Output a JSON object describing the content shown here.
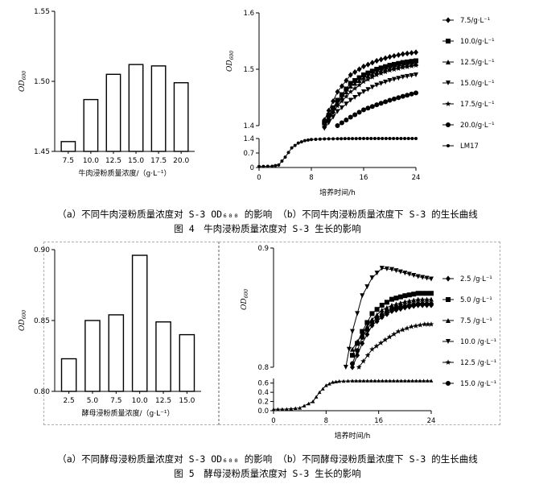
{
  "figure4": {
    "a": {
      "chart_data": {
        "type": "bar",
        "categories": [
          "7.5",
          "10.0",
          "12.5",
          "15.0",
          "17.5",
          "20.0"
        ],
        "values": [
          1.457,
          1.487,
          1.505,
          1.512,
          1.511,
          1.499
        ],
        "ylim": [
          1.45,
          1.55
        ],
        "yticks": [
          "1.45",
          "1.50",
          "1.55"
        ],
        "ylabel": "OD600",
        "xlabel": "牛肉浸粉质量浓度/（g·L⁻¹）"
      }
    },
    "b": {
      "chart_data": {
        "type": "line",
        "xlabel": "培养时间/h",
        "ylabel": "OD600",
        "xticks": [
          "0",
          "8",
          "16",
          "24"
        ],
        "yticks_upper": [
          "1.4",
          "1.5",
          "1.6"
        ],
        "yticks_lower": [
          "0",
          "0.7",
          "1.4"
        ],
        "xlim": [
          0,
          24
        ],
        "ylim_upper": [
          1.4,
          1.6
        ],
        "ylim_lower": [
          0,
          1.4
        ],
        "legend_position": "right",
        "series": [
          {
            "name": "7.5/g·L⁻¹",
            "marker": "diamond",
            "points": [
              [
                10,
                1.41
              ],
              [
                12,
                1.46
              ],
              [
                14,
                1.49
              ],
              [
                16,
                1.505
              ],
              [
                18,
                1.515
              ],
              [
                20,
                1.522
              ],
              [
                22,
                1.527
              ],
              [
                24,
                1.53
              ]
            ]
          },
          {
            "name": "10.0/g·L⁻¹",
            "marker": "square",
            "points": [
              [
                10,
                1.405
              ],
              [
                12,
                1.445
              ],
              [
                14,
                1.475
              ],
              [
                16,
                1.49
              ],
              [
                18,
                1.5
              ],
              [
                20,
                1.507
              ],
              [
                22,
                1.512
              ],
              [
                24,
                1.515
              ]
            ]
          },
          {
            "name": "12.5/g·L⁻¹",
            "marker": "triangle-up",
            "points": [
              [
                10,
                1.4
              ],
              [
                12,
                1.44
              ],
              [
                14,
                1.47
              ],
              [
                16,
                1.485
              ],
              [
                18,
                1.495
              ],
              [
                20,
                1.502
              ],
              [
                22,
                1.507
              ],
              [
                24,
                1.51
              ]
            ]
          },
          {
            "name": "15.0/g·L⁻¹",
            "marker": "triangle-down",
            "points": [
              [
                10,
                1.395
              ],
              [
                12,
                1.425
              ],
              [
                14,
                1.445
              ],
              [
                16,
                1.46
              ],
              [
                18,
                1.472
              ],
              [
                20,
                1.48
              ],
              [
                22,
                1.486
              ],
              [
                24,
                1.49
              ]
            ]
          },
          {
            "name": "17.5/g·L⁻¹",
            "marker": "star",
            "points": [
              [
                10,
                1.398
              ],
              [
                12,
                1.435
              ],
              [
                14,
                1.46
              ],
              [
                16,
                1.478
              ],
              [
                18,
                1.49
              ],
              [
                20,
                1.498
              ],
              [
                22,
                1.503
              ],
              [
                24,
                1.507
              ]
            ]
          },
          {
            "name": "20.0/g·L⁻¹",
            "marker": "circle",
            "points": [
              [
                12,
                1.4
              ],
              [
                14,
                1.415
              ],
              [
                16,
                1.428
              ],
              [
                18,
                1.437
              ],
              [
                20,
                1.445
              ],
              [
                22,
                1.452
              ],
              [
                24,
                1.458
              ]
            ]
          },
          {
            "name": "LM17",
            "marker": "dot",
            "points": [
              [
                0,
                0.05
              ],
              [
                2,
                0.06
              ],
              [
                3,
                0.12
              ],
              [
                4,
                0.5
              ],
              [
                5,
                0.95
              ],
              [
                6,
                1.18
              ],
              [
                7,
                1.3
              ],
              [
                8,
                1.35
              ],
              [
                10,
                1.38
              ],
              [
                12,
                1.39
              ],
              [
                16,
                1.4
              ],
              [
                20,
                1.4
              ],
              [
                24,
                1.4
              ]
            ]
          }
        ]
      }
    },
    "caption_sub": "（a）不同牛肉浸粉质量浓度对 S-3 OD₆₀₀ 的影响 （b）不同牛肉浸粉质量浓度下 S-3 的生长曲线",
    "caption_main": "图 4　牛肉浸粉质量浓度对 S-3 生长的影响"
  },
  "figure5": {
    "a": {
      "chart_data": {
        "type": "bar",
        "categories": [
          "2.5",
          "5.0",
          "7.5",
          "10.0",
          "12.5",
          "15.0"
        ],
        "values": [
          0.823,
          0.85,
          0.854,
          0.896,
          0.849,
          0.84
        ],
        "ylim": [
          0.8,
          0.9
        ],
        "yticks": [
          "0.80",
          "0.85",
          "0.90"
        ],
        "ylabel": "OD600",
        "xlabel": "酵母浸粉质量浓度/（g·L⁻¹）"
      }
    },
    "b": {
      "chart_data": {
        "type": "line",
        "xlabel": "培养时间/h",
        "ylabel": "OD600",
        "xticks": [
          "0",
          "8",
          "16",
          "24"
        ],
        "yticks_upper": [
          "0.8",
          "0.9"
        ],
        "yticks_lower": [
          "0.0",
          "0.2",
          "0.4",
          "0.6"
        ],
        "xlim": [
          0,
          24
        ],
        "ylim_upper": [
          0.8,
          0.9
        ],
        "ylim_lower": [
          0,
          0.7
        ],
        "legend_position": "right",
        "series": [
          {
            "name": "2.5 /g·L⁻¹",
            "marker": "diamond",
            "points": [
              [
                12,
                0.8
              ],
              [
                13.5,
                0.82
              ],
              [
                15,
                0.835
              ],
              [
                16.5,
                0.842
              ],
              [
                18,
                0.847
              ],
              [
                20,
                0.85
              ],
              [
                22,
                0.852
              ],
              [
                24,
                0.852
              ]
            ]
          },
          {
            "name": "5.0 /g·L⁻¹",
            "marker": "square",
            "points": [
              [
                12,
                0.81
              ],
              [
                13.5,
                0.83
              ],
              [
                15,
                0.845
              ],
              [
                16.5,
                0.852
              ],
              [
                18,
                0.857
              ],
              [
                20,
                0.86
              ],
              [
                22,
                0.862
              ],
              [
                24,
                0.862
              ]
            ]
          },
          {
            "name": "7.5 /g·L⁻¹",
            "marker": "triangle-up",
            "points": [
              [
                12,
                0.815
              ],
              [
                13.5,
                0.828
              ],
              [
                15,
                0.84
              ],
              [
                16.5,
                0.848
              ],
              [
                18,
                0.852
              ],
              [
                20,
                0.855
              ],
              [
                22,
                0.857
              ],
              [
                24,
                0.857
              ]
            ]
          },
          {
            "name": "10.0 /g·L⁻¹",
            "marker": "triangle-down",
            "points": [
              [
                11,
                0.8
              ],
              [
                12,
                0.83
              ],
              [
                13.5,
                0.86
              ],
              [
                15,
                0.875
              ],
              [
                16.5,
                0.883
              ],
              [
                18,
                0.882
              ],
              [
                20,
                0.879
              ],
              [
                22,
                0.876
              ],
              [
                24,
                0.874
              ]
            ]
          },
          {
            "name": "12.5 /g·L⁻¹",
            "marker": "star",
            "points": [
              [
                13,
                0.8
              ],
              [
                15,
                0.815
              ],
              [
                17,
                0.823
              ],
              [
                19,
                0.83
              ],
              [
                21,
                0.834
              ],
              [
                23,
                0.836
              ],
              [
                24,
                0.836
              ]
            ]
          },
          {
            "name": "15.0 /g·L⁻¹",
            "marker": "circle",
            "points": [
              [
                12,
                0.803
              ],
              [
                13.5,
                0.825
              ],
              [
                15,
                0.838
              ],
              [
                16.5,
                0.844
              ],
              [
                18,
                0.849
              ],
              [
                20,
                0.851
              ],
              [
                22,
                0.853
              ],
              [
                24,
                0.853
              ]
            ]
          },
          {
            "name": "",
            "marker": "triangle-up-small",
            "points": [
              [
                0,
                0.03
              ],
              [
                2,
                0.035
              ],
              [
                4,
                0.06
              ],
              [
                6,
                0.2
              ],
              [
                7,
                0.4
              ],
              [
                8,
                0.55
              ],
              [
                9,
                0.62
              ],
              [
                10,
                0.64
              ],
              [
                12,
                0.65
              ],
              [
                16,
                0.65
              ],
              [
                20,
                0.65
              ],
              [
                24,
                0.65
              ]
            ]
          }
        ]
      }
    },
    "caption_sub": "（a）不同酵母浸粉质量浓度对 S-3 OD₆₀₀ 的影响 （b）不同酵母浸粉质量浓度下 S-3 的生长曲线",
    "caption_main": "图 5　酵母浸粉质量浓度对 S-3 生长的影响"
  }
}
